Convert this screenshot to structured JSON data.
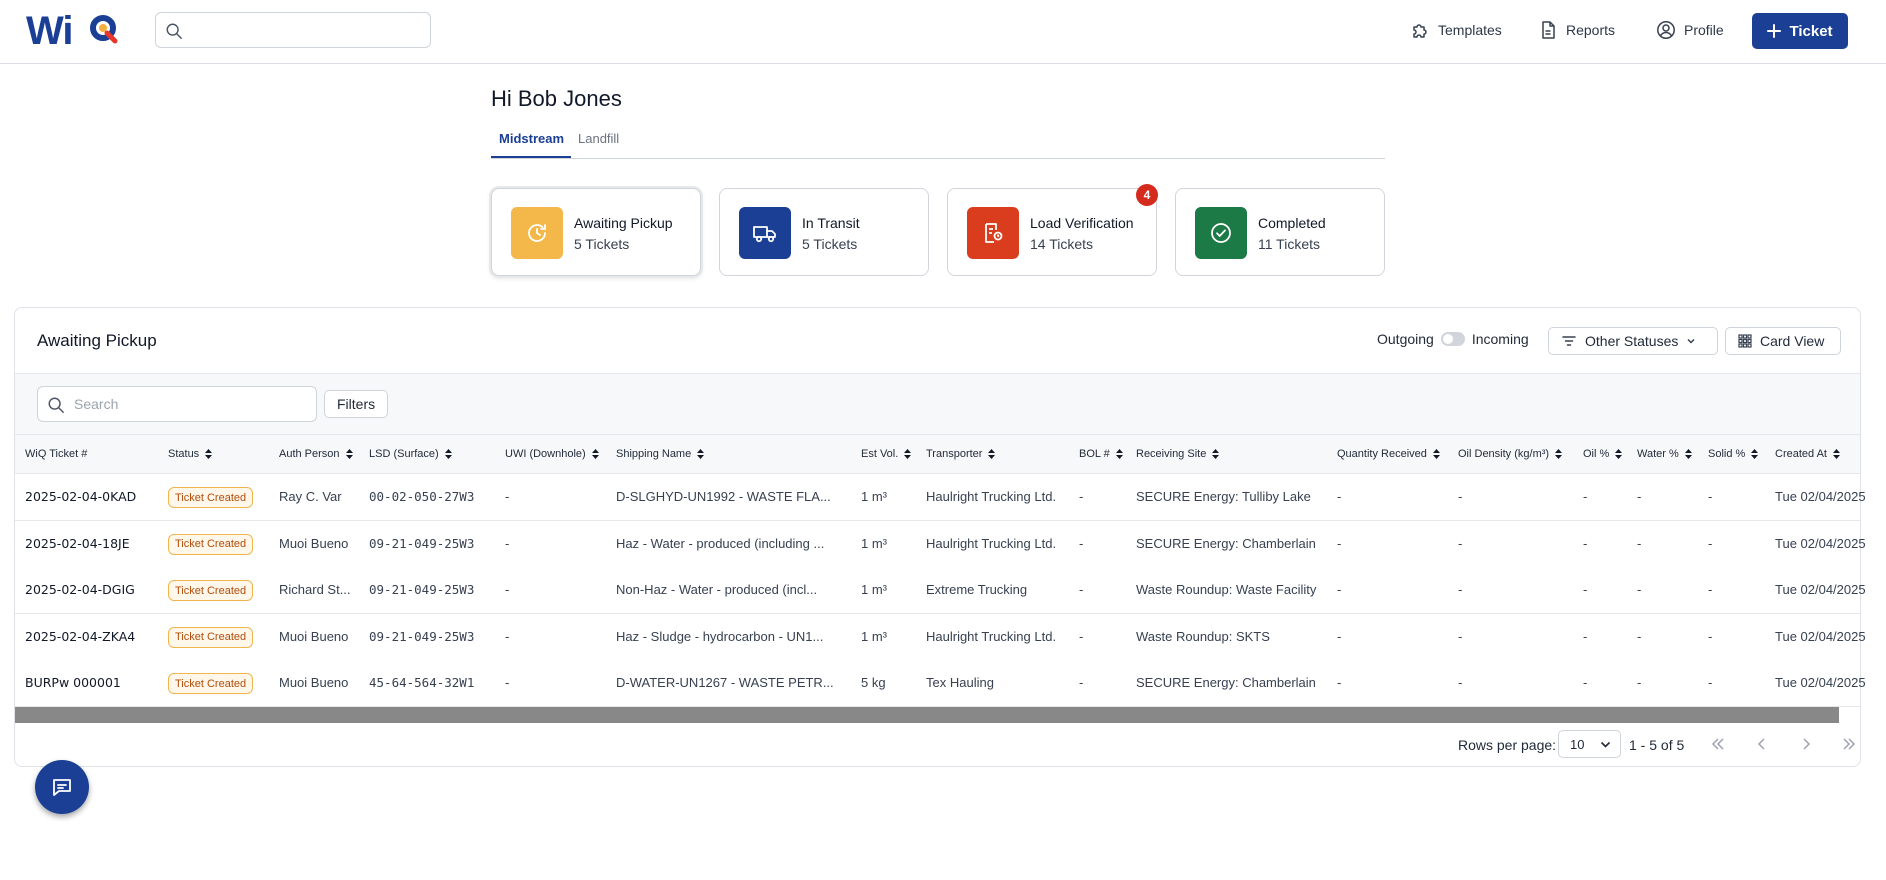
{
  "brand": {
    "name": "WiQ"
  },
  "header": {
    "search_value": "",
    "nav": [
      {
        "label": "Templates",
        "icon": "puzzle-icon"
      },
      {
        "label": "Reports",
        "icon": "document-icon"
      },
      {
        "label": "Profile",
        "icon": "user-circle-icon"
      }
    ],
    "ticket_button": "Ticket"
  },
  "greeting": "Hi Bob Jones",
  "tabs": [
    {
      "label": "Midstream",
      "active": true
    },
    {
      "label": "Landfill",
      "active": false
    }
  ],
  "cards": [
    {
      "title": "Awaiting Pickup",
      "count": "5 Tickets",
      "color": "#f3b74a",
      "icon": "clock-icon",
      "selected": true
    },
    {
      "title": "In Transit",
      "count": "5 Tickets",
      "color": "#1b3f95",
      "icon": "truck-icon"
    },
    {
      "title": "Load Verification",
      "count": "14 Tickets",
      "color": "#d93d1e",
      "icon": "verify-icon",
      "badge": "4"
    },
    {
      "title": "Completed",
      "count": "11 Tickets",
      "color": "#1b7a45",
      "icon": "check-circle-icon"
    }
  ],
  "panel": {
    "title": "Awaiting Pickup",
    "toggle_left": "Outgoing",
    "toggle_right": "Incoming",
    "statuses_button": "Other Statuses",
    "view_button": "Card View",
    "search_placeholder": "Search",
    "filters_button": "Filters"
  },
  "table": {
    "columns": [
      "WiQ Ticket #",
      "Status",
      "Auth Person",
      "LSD (Surface)",
      "UWI (Downhole)",
      "Shipping Name",
      "Est Vol.",
      "Transporter",
      "BOL #",
      "Receiving Site",
      "Quantity Received",
      "Oil Density (kg/m³)",
      "Oil %",
      "Water %",
      "Solid %",
      "Created At"
    ],
    "rows": [
      [
        "2025-02-04-0KAD",
        "Ticket Created",
        "Ray C. Var",
        "00-02-050-27W3",
        "-",
        "D-SLGHYD-UN1992 - WASTE FLA...",
        "1 m³",
        "Haulright Trucking Ltd.",
        "-",
        "SECURE Energy: Tulliby Lake",
        "-",
        "-",
        "-",
        "-",
        "-",
        "Tue 02/04/2025"
      ],
      [
        "2025-02-04-18JE",
        "Ticket Created",
        "Muoi Bueno",
        "09-21-049-25W3",
        "-",
        "Haz - Water - produced (including ...",
        "1 m³",
        "Haulright Trucking Ltd.",
        "-",
        "SECURE Energy: Chamberlain",
        "-",
        "-",
        "-",
        "-",
        "-",
        "Tue 02/04/2025"
      ],
      [
        "2025-02-04-DGIG",
        "Ticket Created",
        "Richard St...",
        "09-21-049-25W3",
        "-",
        "Non-Haz - Water - produced (incl...",
        "1 m³",
        "Extreme Trucking",
        "-",
        "Waste Roundup: Waste Facility",
        "-",
        "-",
        "-",
        "-",
        "-",
        "Tue 02/04/2025"
      ],
      [
        "2025-02-04-ZKA4",
        "Ticket Created",
        "Muoi Bueno",
        "09-21-049-25W3",
        "-",
        "Haz - Sludge - hydrocarbon - UN1...",
        "1 m³",
        "Haulright Trucking Ltd.",
        "-",
        "Waste Roundup: SKTS",
        "-",
        "-",
        "-",
        "-",
        "-",
        "Tue 02/04/2025"
      ],
      [
        "BURPw 000001",
        "Ticket Created",
        "Muoi Bueno",
        "45-64-564-32W1",
        "-",
        "D-WATER-UN1267 - WASTE PETR...",
        "5 kg",
        "Tex Hauling",
        "-",
        "SECURE Energy: Chamberlain",
        "-",
        "-",
        "-",
        "-",
        "-",
        "Tue 02/04/2025"
      ]
    ]
  },
  "pagination": {
    "rows_label": "Rows per page:",
    "rows_value": "10",
    "range": "1 - 5 of 5"
  }
}
